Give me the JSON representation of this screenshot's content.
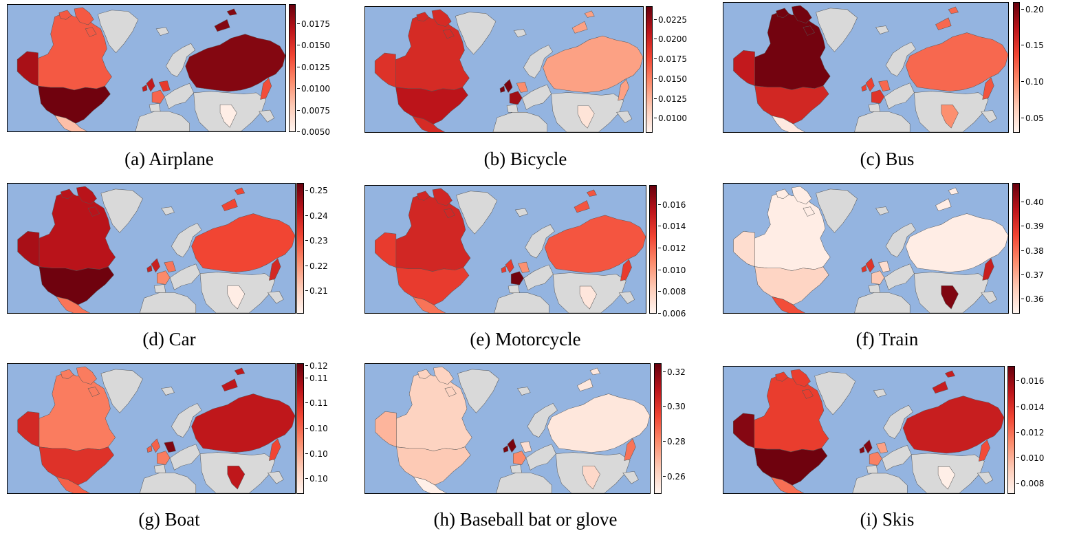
{
  "colors": {
    "ocean": "#94b4e0",
    "no_data": "#d9d9d9",
    "cmap": [
      "#fff5f0",
      "#fdcab5",
      "#fc8b6b",
      "#f14432",
      "#bc141a",
      "#67000d"
    ]
  },
  "chart_data": [
    {
      "type": "heatmap",
      "id": "a",
      "caption": "(a) Airplane",
      "colormap": "Reds",
      "range": [
        0.005,
        0.0198
      ],
      "ticks": [
        "0.0050",
        "0.0075",
        "0.0100",
        "0.0125",
        "0.0150",
        "0.0175"
      ],
      "tick_values": [
        0.005,
        0.0075,
        0.01,
        0.0125,
        0.015,
        0.0175
      ],
      "regions": {
        "USA": 0.0195,
        "Canada": 0.013,
        "Alaska": 0.0175,
        "Mexico": 0.0085,
        "Russia": 0.0188,
        "UK": 0.0165,
        "France": 0.0125,
        "Germany": 0.0145,
        "India": 0.0055,
        "Japan": 0.0135
      }
    },
    {
      "type": "heatmap",
      "id": "b",
      "caption": "(b) Bicycle",
      "colormap": "Reds",
      "range": [
        0.0082,
        0.0242
      ],
      "ticks": [
        "0.0100",
        "0.0125",
        "0.0150",
        "0.0175",
        "0.0200",
        "0.0225"
      ],
      "tick_values": [
        0.01,
        0.0125,
        0.015,
        0.0175,
        0.02,
        0.0225
      ],
      "regions": {
        "USA": 0.021,
        "Canada": 0.0195,
        "Alaska": 0.019,
        "Mexico": 0.0195,
        "Russia": 0.0135,
        "UK": 0.0235,
        "France": 0.022,
        "Germany": 0.0145,
        "India": 0.0095,
        "Japan": 0.0135
      }
    },
    {
      "type": "heatmap",
      "id": "c",
      "caption": "(c) Bus",
      "colormap": "Reds",
      "range": [
        0.03,
        0.21
      ],
      "ticks": [
        "0.05",
        "0.10",
        "0.15",
        "0.20"
      ],
      "tick_values": [
        0.05,
        0.1,
        0.15,
        0.2
      ],
      "regions": {
        "USA": 0.16,
        "Canada": 0.205,
        "Alaska": 0.17,
        "Mexico": 0.04,
        "Russia": 0.12,
        "UK": 0.14,
        "France": 0.15,
        "Germany": 0.12,
        "India": 0.1,
        "Japan": 0.13
      }
    },
    {
      "type": "heatmap",
      "id": "d",
      "caption": "(d) Car",
      "colormap": "Reds",
      "range": [
        0.201,
        0.253
      ],
      "ticks": [
        "0.21",
        "0.22",
        "0.23",
        "0.24",
        "0.25"
      ],
      "tick_values": [
        0.21,
        0.22,
        0.23,
        0.24,
        0.25
      ],
      "regions": {
        "USA": 0.252,
        "Canada": 0.243,
        "Alaska": 0.245,
        "Mexico": 0.225,
        "Russia": 0.232,
        "UK": 0.24,
        "France": 0.222,
        "Germany": 0.225,
        "India": 0.203,
        "Japan": 0.238
      }
    },
    {
      "type": "heatmap",
      "id": "e",
      "caption": "(e) Motorcycle",
      "colormap": "Reds",
      "range": [
        0.006,
        0.0178
      ],
      "ticks": [
        "0.006",
        "0.008",
        "0.010",
        "0.012",
        "0.014",
        "0.016"
      ],
      "tick_values": [
        0.006,
        0.008,
        0.01,
        0.012,
        0.014,
        0.016
      ],
      "regions": {
        "USA": 0.0135,
        "Canada": 0.0145,
        "Alaska": 0.0135,
        "Mexico": 0.0115,
        "Russia": 0.0125,
        "UK": 0.0135,
        "France": 0.0175,
        "Germany": 0.0105,
        "India": 0.0068,
        "Japan": 0.0135
      }
    },
    {
      "type": "heatmap",
      "id": "f",
      "caption": "(f) Train",
      "colormap": "Reds",
      "range": [
        0.354,
        0.408
      ],
      "ticks": [
        "0.36",
        "0.37",
        "0.38",
        "0.39",
        "0.40"
      ],
      "tick_values": [
        0.36,
        0.37,
        0.38,
        0.39,
        0.4
      ],
      "regions": {
        "USA": 0.362,
        "Canada": 0.356,
        "Alaska": 0.36,
        "Mexico": 0.385,
        "Russia": 0.356,
        "UK": 0.39,
        "France": 0.365,
        "Germany": 0.36,
        "India": 0.405,
        "Japan": 0.395
      }
    },
    {
      "type": "heatmap",
      "id": "g",
      "caption": "(g) Boat",
      "colormap": "Reds",
      "range": [
        0.0945,
        0.1205
      ],
      "ticks": [
        "0.10",
        "0.10",
        "0.10",
        "0.11",
        "0.11",
        "0.12"
      ],
      "tick_values": [
        0.0975,
        0.1025,
        0.1075,
        0.1125,
        0.1175,
        0.12
      ],
      "regions": {
        "USA": 0.112,
        "Canada": 0.106,
        "Alaska": 0.113,
        "Mexico": 0.108,
        "Russia": 0.115,
        "UK": 0.108,
        "France": 0.106,
        "Germany": 0.119,
        "India": 0.115,
        "Japan": 0.11
      }
    },
    {
      "type": "heatmap",
      "id": "h",
      "caption": "(h) Baseball bat or glove",
      "colormap": "Reds",
      "range": [
        0.25,
        0.325
      ],
      "ticks": [
        "0.26",
        "0.28",
        "0.30",
        "0.32"
      ],
      "tick_values": [
        0.26,
        0.28,
        0.3,
        0.32
      ],
      "regions": {
        "USA": 0.265,
        "Canada": 0.262,
        "Alaska": 0.27,
        "Mexico": 0.252,
        "Russia": 0.255,
        "UK": 0.322,
        "France": 0.28,
        "Germany": 0.258,
        "India": 0.26,
        "Japan": 0.285
      }
    },
    {
      "type": "heatmap",
      "id": "i",
      "caption": "(i) Skis",
      "colormap": "Reds",
      "range": [
        0.0072,
        0.0172
      ],
      "ticks": [
        "0.008",
        "0.010",
        "0.012",
        "0.014",
        "0.016"
      ],
      "tick_values": [
        0.008,
        0.01,
        0.012,
        0.014,
        0.016
      ],
      "regions": {
        "USA": 0.017,
        "Canada": 0.0135,
        "Alaska": 0.0165,
        "Mexico": 0.012,
        "Russia": 0.0148,
        "UK": 0.0165,
        "France": 0.0115,
        "Germany": 0.0105,
        "India": 0.0075,
        "Japan": 0.013
      }
    }
  ]
}
